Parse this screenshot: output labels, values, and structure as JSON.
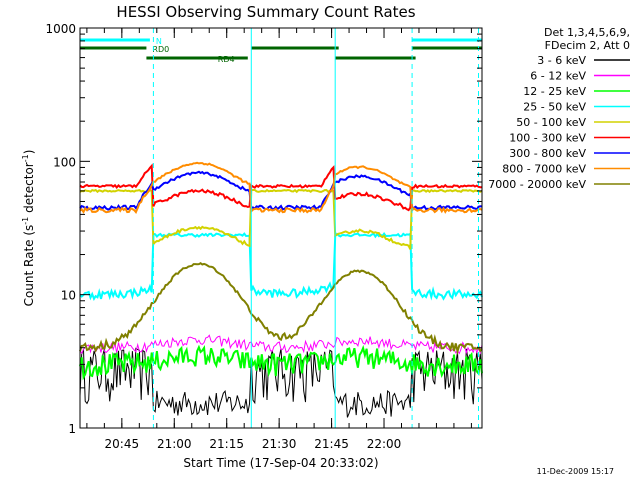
{
  "chart_data": {
    "type": "line",
    "title": "HESSI Observing Summary Count Rates",
    "xlabel": "Start Time (17-Sep-04 20:33:02)",
    "ylabel_main": "Count Rate (s",
    "ylabel_sup1": "-1",
    "ylabel_mid": " detector",
    "ylabel_sup2": "-1",
    "ylabel_end": ")",
    "y_scale": "log",
    "ylim": [
      1,
      1000
    ],
    "xlim_minutes": [
      0,
      115
    ],
    "x_ticks": [
      {
        "label": "20:45",
        "minute": 11.97
      },
      {
        "label": "21:00",
        "minute": 26.97
      },
      {
        "label": "21:15",
        "minute": 41.97
      },
      {
        "label": "21:30",
        "minute": 56.97
      },
      {
        "label": "21:45",
        "minute": 71.97
      },
      {
        "label": "22:00",
        "minute": 86.97
      }
    ],
    "y_ticks": [
      {
        "label": "1",
        "value": 1
      },
      {
        "label": "10",
        "value": 10
      },
      {
        "label": "100",
        "value": 100
      },
      {
        "label": "1000",
        "value": 1000
      }
    ],
    "legend": {
      "placement": "right",
      "header": [
        "Det 1,3,4,5,6,9,",
        "FDecim 2, Att 0"
      ]
    },
    "series": [
      {
        "name": "3 - 6 keV",
        "color": "#000000"
      },
      {
        "name": "6 - 12 keV",
        "color": "#ff00ff"
      },
      {
        "name": "12 - 25 keV",
        "color": "#00ff00"
      },
      {
        "name": "25 - 50 keV",
        "color": "#00ffff"
      },
      {
        "name": "50 - 100 keV",
        "color": "#d2d200"
      },
      {
        "name": "100 - 300 keV",
        "color": "#ff0000"
      },
      {
        "name": "300 - 800 keV",
        "color": "#0000ff"
      },
      {
        "name": "800 - 7000 keV",
        "color": "#ff8c00"
      },
      {
        "name": "7000 - 20000 keV",
        "color": "#808000"
      }
    ],
    "flags": [
      {
        "label": "N",
        "color": "#00ffff",
        "segments": [
          [
            0,
            20
          ],
          [
            95,
            115
          ]
        ]
      },
      {
        "label": "RD0",
        "color": "#006400",
        "segments": [
          [
            0,
            19
          ],
          [
            49,
            74
          ],
          [
            95,
            115
          ]
        ]
      },
      {
        "label": "RD4",
        "color": "#006400",
        "segments": [
          [
            19,
            48
          ],
          [
            73,
            96
          ]
        ]
      }
    ],
    "markers": [
      {
        "type": "dashed",
        "minute": 21,
        "color": "#00ffff"
      },
      {
        "type": "solid",
        "minute": 49,
        "color": "#00ffff"
      },
      {
        "type": "solid",
        "minute": 73,
        "color": "#00ffff"
      },
      {
        "type": "dashed",
        "minute": 95,
        "color": "#00ffff"
      },
      {
        "type": "dashed",
        "minute": 114,
        "color": "#00ffff"
      }
    ]
  },
  "footer": {
    "timestamp": "11-Dec-2009 15:17"
  }
}
